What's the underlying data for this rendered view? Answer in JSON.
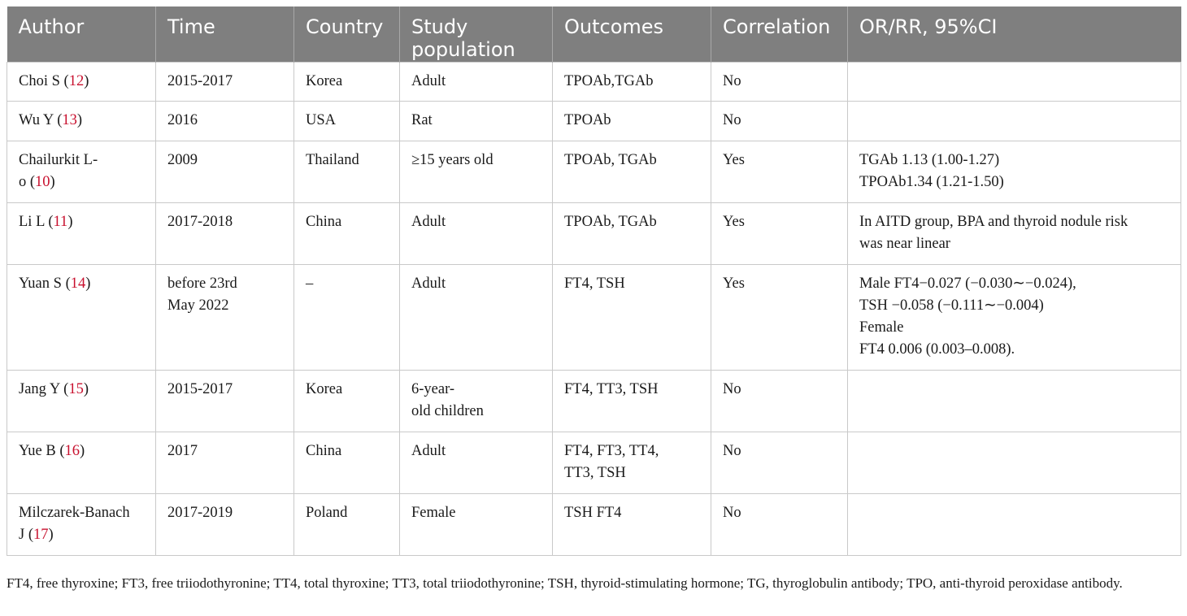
{
  "table": {
    "headers": [
      "Author",
      "Time",
      "Country",
      "Study population",
      "Outcomes",
      "Correlation",
      "OR/RR, 95%CI"
    ],
    "rows": [
      {
        "author": "Choi S",
        "ref": "12",
        "time": "2015-2017",
        "country": "Korea",
        "population": "Adult",
        "outcomes": "TPOAb,TGAb",
        "correlation": "No",
        "or": ""
      },
      {
        "author": "Wu Y",
        "ref": "13",
        "time": "2016",
        "country": "USA",
        "population": "Rat",
        "outcomes": "TPOAb",
        "correlation": "No",
        "or": ""
      },
      {
        "author": "Chailurkit L-\no",
        "ref": "10",
        "time": "2009",
        "country": "Thailand",
        "population": "≥15 years old",
        "outcomes": "TPOAb, TGAb",
        "correlation": "Yes",
        "or": "TGAb 1.13 (1.00-1.27)\nTPOAb1.34 (1.21-1.50)"
      },
      {
        "author": "Li L",
        "ref": "11",
        "time": "2017-2018",
        "country": "China",
        "population": "Adult",
        "outcomes": "TPOAb, TGAb",
        "correlation": "Yes",
        "or": "In AITD group, BPA and thyroid nodule risk\nwas near linear"
      },
      {
        "author": "Yuan S",
        "ref": "14",
        "time": "before 23rd\nMay 2022",
        "country": "–",
        "population": "Adult",
        "outcomes": "FT4, TSH",
        "correlation": "Yes",
        "or": "Male FT4−0.027 (−0.030∼−0.024),\nTSH −0.058 (−0.111∼−0.004)\nFemale\nFT4 0.006 (0.003–0.008)."
      },
      {
        "author": "Jang Y",
        "ref": "15",
        "time": "2015-2017",
        "country": "Korea",
        "population": "6-year-\nold children",
        "outcomes": "FT4, TT3, TSH",
        "correlation": "No",
        "or": ""
      },
      {
        "author": "Yue B",
        "ref": "16",
        "time": "2017",
        "country": "China",
        "population": "Adult",
        "outcomes": "FT4, FT3, TT4,\nTT3, TSH",
        "correlation": "No",
        "or": ""
      },
      {
        "author": "Milczarek-Banach\nJ",
        "ref": "17",
        "time": "2017-2019",
        "country": "Poland",
        "population": "Female",
        "outcomes": "TSH FT4",
        "correlation": "No",
        "or": ""
      }
    ]
  },
  "footnote": "FT4, free thyroxine; FT3, free triiodothyronine; TT4, total thyroxine; TT3, total triiodothyronine; TSH, thyroid-stimulating hormone; TG, thyroglobulin antibody; TPO, anti-thyroid peroxidase antibody."
}
